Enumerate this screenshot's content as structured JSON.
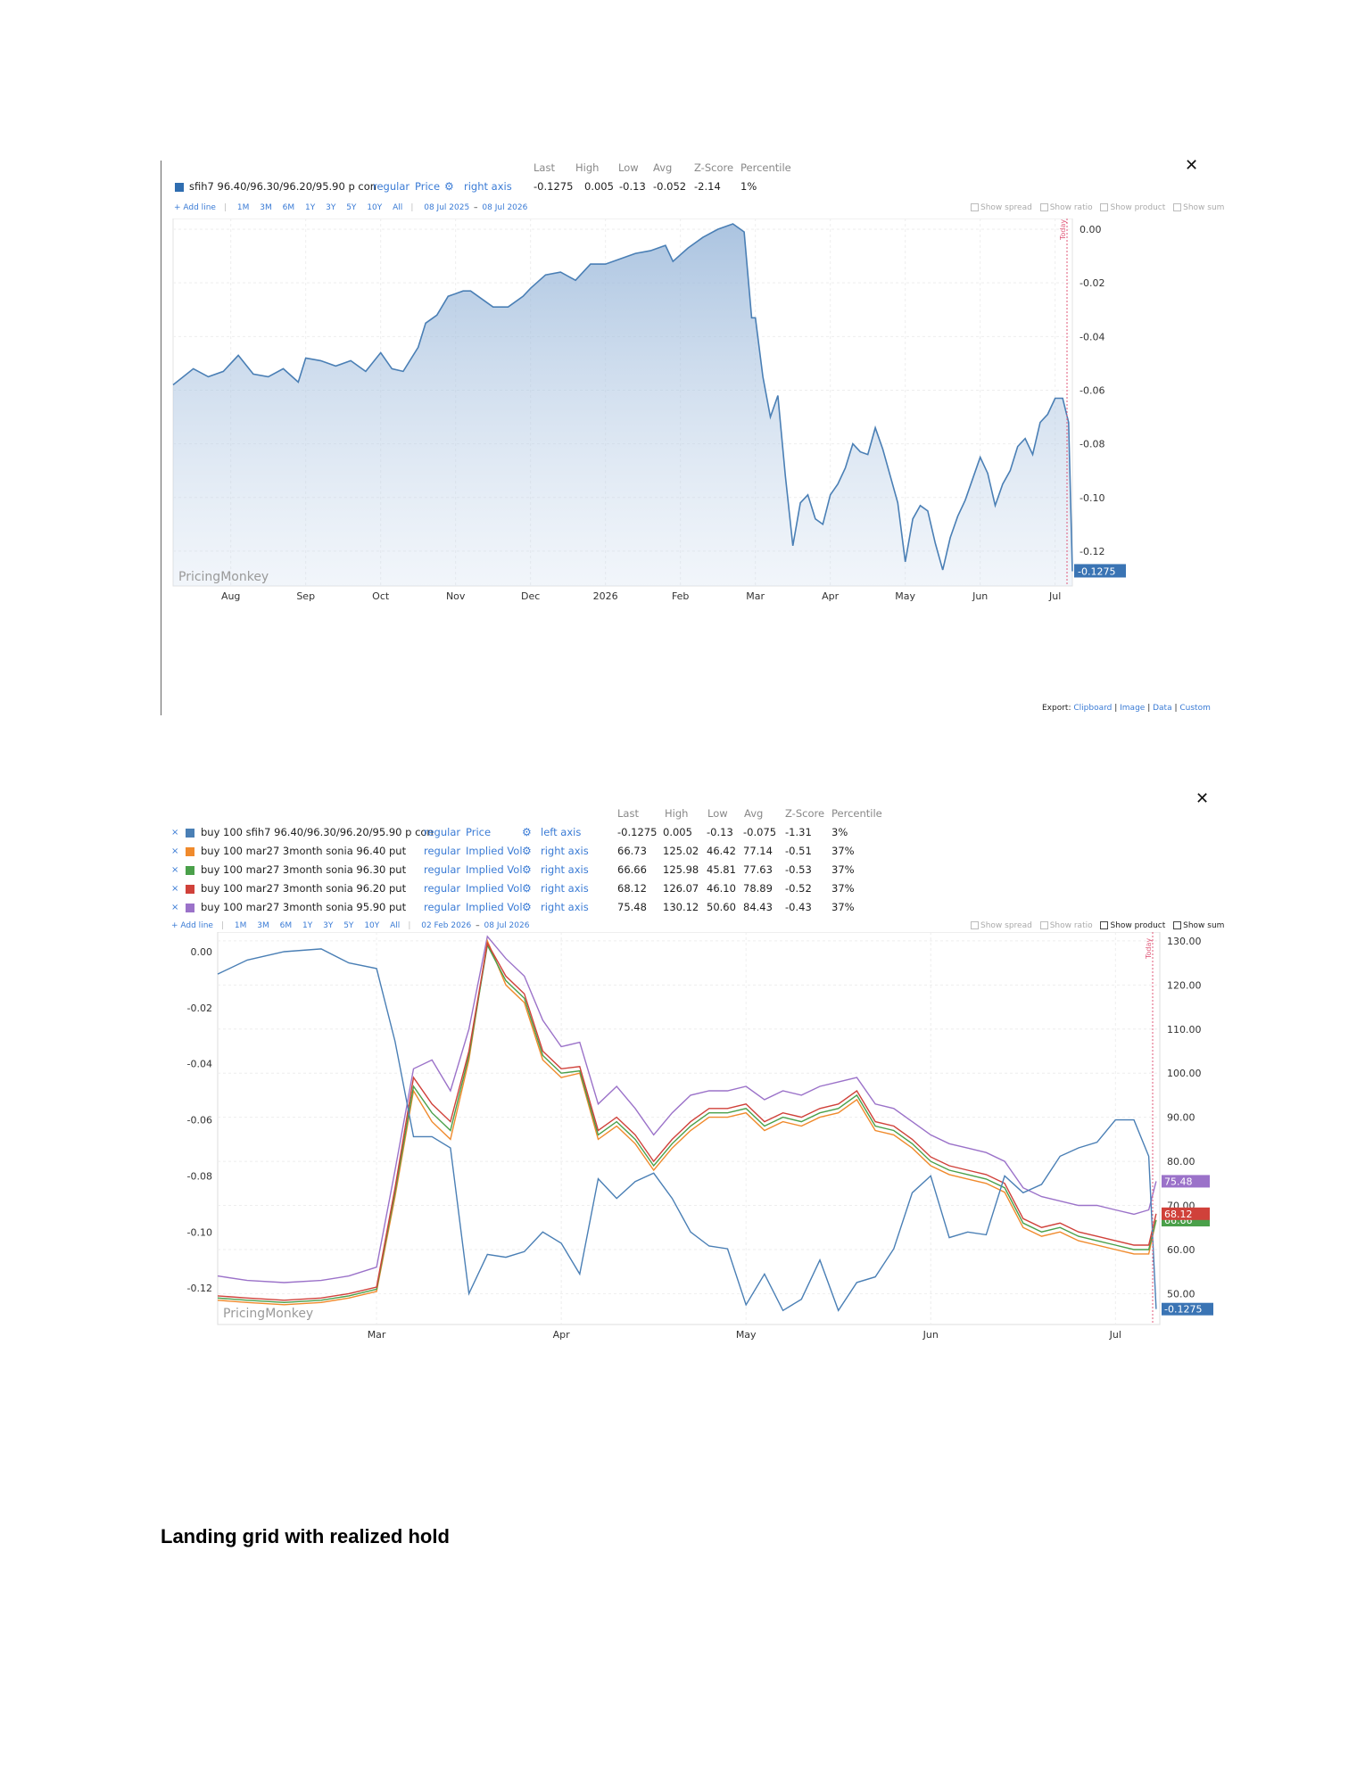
{
  "colors": {
    "blue": "#4a7fb5",
    "orange": "#f08a2c",
    "green": "#4aa04a",
    "red": "#d0413a",
    "purple": "#9b72c9",
    "link": "#3a7bd5",
    "today": "#e05a7a"
  },
  "icons": {
    "close": "close-icon",
    "gear": "gear-icon",
    "remove": "remove-series-icon"
  },
  "panel1": {
    "headers": [
      "Last",
      "High",
      "Low",
      "Avg",
      "Z-Score",
      "Percentile"
    ],
    "series": {
      "name": "sfih7 96.40/96.30/96.20/95.90 p con",
      "mode": "regular",
      "measure": "Price",
      "axis": "right axis",
      "stats": [
        "-0.1275",
        "0.005",
        "-0.13",
        "-0.052",
        "-2.14",
        "1%"
      ]
    },
    "toolbar": {
      "add": "+ Add line",
      "ranges": [
        "1M",
        "3M",
        "6M",
        "1Y",
        "3Y",
        "5Y",
        "10Y",
        "All"
      ],
      "from": "08 Jul 2025",
      "dash": "–",
      "to": "08 Jul 2026"
    },
    "options": [
      "Show spread",
      "Show ratio",
      "Show product",
      "Show sum"
    ],
    "export": {
      "label": "Export:",
      "links": [
        "Clipboard",
        "Image",
        "Data",
        "Custom"
      ]
    },
    "watermark": "PricingMonkey",
    "today_label": "Today"
  },
  "panel2": {
    "headers": [
      "Last",
      "High",
      "Low",
      "Avg",
      "Z-Score",
      "Percentile"
    ],
    "rows": [
      {
        "name": "buy 100 sfih7 96.40/96.30/96.20/95.90 p con",
        "mode": "regular",
        "measure": "Price",
        "axis": "left axis",
        "stats": [
          "-0.1275",
          "0.005",
          "-0.13",
          "-0.075",
          "-1.31",
          "3%"
        ]
      },
      {
        "name": "buy 100 mar27 3month sonia 96.40 put",
        "mode": "regular",
        "measure": "Implied Vol",
        "axis": "right axis",
        "stats": [
          "66.73",
          "125.02",
          "46.42",
          "77.14",
          "-0.51",
          "37%"
        ]
      },
      {
        "name": "buy 100 mar27 3month sonia 96.30 put",
        "mode": "regular",
        "measure": "Implied Vol",
        "axis": "right axis",
        "stats": [
          "66.66",
          "125.98",
          "45.81",
          "77.63",
          "-0.53",
          "37%"
        ]
      },
      {
        "name": "buy 100 mar27 3month sonia 96.20 put",
        "mode": "regular",
        "measure": "Implied Vol",
        "axis": "right axis",
        "stats": [
          "68.12",
          "126.07",
          "46.10",
          "78.89",
          "-0.52",
          "37%"
        ]
      },
      {
        "name": "buy 100 mar27 3month sonia 95.90 put",
        "mode": "regular",
        "measure": "Implied Vol",
        "axis": "right axis",
        "stats": [
          "75.48",
          "130.12",
          "50.60",
          "84.43",
          "-0.43",
          "37%"
        ]
      }
    ],
    "toolbar": {
      "add": "+ Add line",
      "ranges": [
        "1M",
        "3M",
        "6M",
        "1Y",
        "3Y",
        "5Y",
        "10Y",
        "All"
      ],
      "from": "02 Feb 2026",
      "dash": "–",
      "to": "08 Jul 2026"
    },
    "options": [
      "Show spread",
      "Show ratio",
      "Show product",
      "Show sum"
    ],
    "watermark": "PricingMonkey",
    "today_label": "Today"
  },
  "section_title": "Landing grid with realized hold",
  "chart_data": [
    {
      "type": "area",
      "x_ticks": [
        "Aug",
        "Sep",
        "Oct",
        "Nov",
        "Dec",
        "2026",
        "Feb",
        "Mar",
        "Apr",
        "May",
        "Jun",
        "Jul"
      ],
      "x_tick_pos": [
        1.0,
        2.0,
        3.0,
        4.0,
        5.0,
        6.0,
        7.0,
        8.0,
        9.0,
        10.0,
        11.0,
        12.0
      ],
      "xlim": [
        0.23,
        12.23
      ],
      "ylim": [
        -0.133,
        0.004
      ],
      "y_ticks": [
        "0.00",
        "-0.02",
        "-0.04",
        "-0.06",
        "-0.08",
        "-0.10",
        "-0.12"
      ],
      "y_tick_vals": [
        0,
        -0.02,
        -0.04,
        -0.06,
        -0.08,
        -0.1,
        -0.12
      ],
      "y_axis": "right",
      "last_label": "-0.1275",
      "last_value": -0.1275,
      "series": [
        {
          "name": "sfih7 96.40/96.30/96.20/95.90 p con",
          "x": [
            0.23,
            0.5,
            0.7,
            0.9,
            1.1,
            1.3,
            1.5,
            1.7,
            1.9,
            2.0,
            2.2,
            2.4,
            2.6,
            2.8,
            3.0,
            3.15,
            3.3,
            3.5,
            3.6,
            3.75,
            3.9,
            4.1,
            4.2,
            4.4,
            4.5,
            4.7,
            4.9,
            5.0,
            5.2,
            5.4,
            5.6,
            5.8,
            6.0,
            6.2,
            6.4,
            6.6,
            6.8,
            6.9,
            7.1,
            7.3,
            7.5,
            7.7,
            7.85,
            7.95,
            8.0,
            8.1,
            8.2,
            8.3,
            8.4,
            8.5,
            8.6,
            8.7,
            8.8,
            8.9,
            9.0,
            9.1,
            9.2,
            9.3,
            9.4,
            9.5,
            9.6,
            9.7,
            9.8,
            9.9,
            10.0,
            10.1,
            10.2,
            10.3,
            10.4,
            10.5,
            10.6,
            10.7,
            10.8,
            10.9,
            11.0,
            11.1,
            11.2,
            11.3,
            11.4,
            11.5,
            11.6,
            11.7,
            11.8,
            11.9,
            12.0,
            12.1,
            12.18,
            12.23
          ],
          "y": [
            -0.058,
            -0.052,
            -0.055,
            -0.053,
            -0.047,
            -0.054,
            -0.055,
            -0.052,
            -0.057,
            -0.048,
            -0.049,
            -0.051,
            -0.049,
            -0.053,
            -0.046,
            -0.052,
            -0.053,
            -0.044,
            -0.035,
            -0.032,
            -0.025,
            -0.023,
            -0.023,
            -0.027,
            -0.029,
            -0.029,
            -0.025,
            -0.022,
            -0.017,
            -0.016,
            -0.019,
            -0.013,
            -0.013,
            -0.011,
            -0.009,
            -0.008,
            -0.006,
            -0.012,
            -0.007,
            -0.003,
            0.0,
            0.002,
            -0.001,
            -0.033,
            -0.033,
            -0.055,
            -0.07,
            -0.062,
            -0.092,
            -0.118,
            -0.102,
            -0.099,
            -0.108,
            -0.11,
            -0.099,
            -0.095,
            -0.089,
            -0.08,
            -0.083,
            -0.084,
            -0.074,
            -0.082,
            -0.092,
            -0.102,
            -0.124,
            -0.108,
            -0.103,
            -0.105,
            -0.117,
            -0.127,
            -0.115,
            -0.107,
            -0.101,
            -0.093,
            -0.085,
            -0.091,
            -0.103,
            -0.095,
            -0.09,
            -0.081,
            -0.078,
            -0.084,
            -0.072,
            -0.069,
            -0.063,
            -0.063,
            -0.072,
            -0.1275
          ]
        }
      ]
    },
    {
      "type": "line",
      "x_ticks": [
        "Mar",
        "Apr",
        "May",
        "Jun",
        "Jul"
      ],
      "x_tick_pos": [
        1.0,
        2.0,
        3.0,
        4.0,
        5.0
      ],
      "xlim": [
        0.14,
        5.24
      ],
      "left_axis": {
        "ylim": [
          -0.133,
          0.007
        ],
        "ticks": [
          "0.00",
          "-0.02",
          "-0.04",
          "-0.06",
          "-0.08",
          "-0.10",
          "-0.12"
        ],
        "tick_vals": [
          0,
          -0.02,
          -0.04,
          -0.06,
          -0.08,
          -0.1,
          -0.12
        ]
      },
      "right_axis": {
        "ylim": [
          43.0,
          132.0
        ],
        "ticks": [
          "130.00",
          "120.00",
          "110.00",
          "100.00",
          "90.00",
          "80.00",
          "70.00",
          "60.00",
          "50.00"
        ],
        "tick_vals": [
          130,
          120,
          110,
          100,
          90,
          80,
          70,
          60,
          50
        ]
      },
      "x": [
        0.14,
        0.3,
        0.5,
        0.7,
        0.85,
        1.0,
        1.1,
        1.2,
        1.3,
        1.4,
        1.5,
        1.6,
        1.7,
        1.8,
        1.9,
        2.0,
        2.1,
        2.2,
        2.3,
        2.4,
        2.5,
        2.6,
        2.7,
        2.8,
        2.9,
        3.0,
        3.1,
        3.2,
        3.3,
        3.4,
        3.5,
        3.6,
        3.7,
        3.8,
        3.9,
        4.0,
        4.1,
        4.2,
        4.3,
        4.4,
        4.5,
        4.6,
        4.7,
        4.8,
        4.9,
        5.0,
        5.1,
        5.18,
        5.22
      ],
      "series": [
        {
          "name": "buy 100 sfih7 96.40/96.30/96.20/95.90 p con",
          "axis": "left",
          "color": "#4a7fb5",
          "last": "-0.1275",
          "y": [
            -0.008,
            -0.003,
            0.0,
            0.001,
            -0.004,
            -0.006,
            -0.032,
            -0.066,
            -0.066,
            -0.07,
            -0.122,
            -0.108,
            -0.109,
            -0.107,
            -0.1,
            -0.104,
            -0.115,
            -0.081,
            -0.088,
            -0.082,
            -0.079,
            -0.088,
            -0.1,
            -0.105,
            -0.106,
            -0.126,
            -0.115,
            -0.128,
            -0.124,
            -0.11,
            -0.128,
            -0.118,
            -0.116,
            -0.106,
            -0.086,
            -0.08,
            -0.102,
            -0.1,
            -0.101,
            -0.08,
            -0.086,
            -0.083,
            -0.073,
            -0.07,
            -0.068,
            -0.06,
            -0.06,
            -0.073,
            -0.1275
          ]
        },
        {
          "name": "buy 100 mar27 3month sonia 96.40 put",
          "axis": "right",
          "color": "#f08a2c",
          "last": "66.73",
          "y": [
            48.5,
            48.0,
            47.5,
            48.0,
            49.0,
            50.5,
            72.0,
            96.0,
            89.0,
            85.0,
            103.0,
            130.0,
            120.0,
            116.0,
            103.0,
            99.0,
            100.0,
            85.0,
            88.0,
            84.0,
            78.0,
            83.0,
            87.0,
            90.0,
            90.0,
            91.0,
            87.0,
            89.0,
            88.0,
            90.0,
            91.0,
            94.0,
            87.0,
            86.0,
            83.0,
            79.0,
            77.0,
            76.0,
            75.0,
            73.0,
            65.0,
            63.0,
            64.0,
            62.0,
            61.0,
            60.0,
            59.0,
            59.0,
            66.73
          ]
        },
        {
          "name": "buy 100 mar27 3month sonia 96.30 put",
          "axis": "right",
          "color": "#4aa04a",
          "last": "66.66",
          "y": [
            49.0,
            48.5,
            48.0,
            48.5,
            49.5,
            51.0,
            73.0,
            97.0,
            91.0,
            87.0,
            104.0,
            129.0,
            121.0,
            117.0,
            104.0,
            100.0,
            100.5,
            86.0,
            89.0,
            85.0,
            79.0,
            84.0,
            88.0,
            91.0,
            91.0,
            92.0,
            88.0,
            90.0,
            89.0,
            91.0,
            92.0,
            95.0,
            88.0,
            87.0,
            84.0,
            80.0,
            78.0,
            77.0,
            76.0,
            74.0,
            66.0,
            64.0,
            65.0,
            63.0,
            62.0,
            61.0,
            60.0,
            60.0,
            66.66
          ]
        },
        {
          "name": "buy 100 mar27 3month sonia 96.20 put",
          "axis": "right",
          "color": "#d0413a",
          "last": "68.12",
          "y": [
            49.5,
            49.0,
            48.5,
            49.0,
            50.0,
            51.5,
            74.0,
            99.0,
            93.0,
            89.0,
            105.0,
            129.5,
            122.0,
            118.0,
            105.0,
            101.0,
            101.5,
            87.0,
            90.0,
            86.0,
            80.0,
            85.0,
            89.0,
            92.0,
            92.0,
            93.0,
            89.0,
            91.0,
            90.0,
            92.0,
            93.0,
            96.0,
            89.0,
            88.0,
            85.0,
            81.0,
            79.0,
            78.0,
            77.0,
            75.0,
            67.0,
            65.0,
            66.0,
            64.0,
            63.0,
            62.0,
            61.0,
            61.0,
            68.12
          ]
        },
        {
          "name": "buy 100 mar27 3month sonia 95.90 put",
          "axis": "right",
          "color": "#9b72c9",
          "last": "75.48",
          "y": [
            54.0,
            53.0,
            52.5,
            53.0,
            54.0,
            56.0,
            78.0,
            101.0,
            103.0,
            96.0,
            110.0,
            131.0,
            126.0,
            122.0,
            112.0,
            106.0,
            107.0,
            93.0,
            97.0,
            92.0,
            86.0,
            91.0,
            95.0,
            96.0,
            96.0,
            97.0,
            94.0,
            96.0,
            95.0,
            97.0,
            98.0,
            99.0,
            93.0,
            92.0,
            89.0,
            86.0,
            84.0,
            83.0,
            82.0,
            80.0,
            74.0,
            72.0,
            71.0,
            70.0,
            70.0,
            69.0,
            68.0,
            69.0,
            75.48
          ]
        }
      ]
    }
  ]
}
